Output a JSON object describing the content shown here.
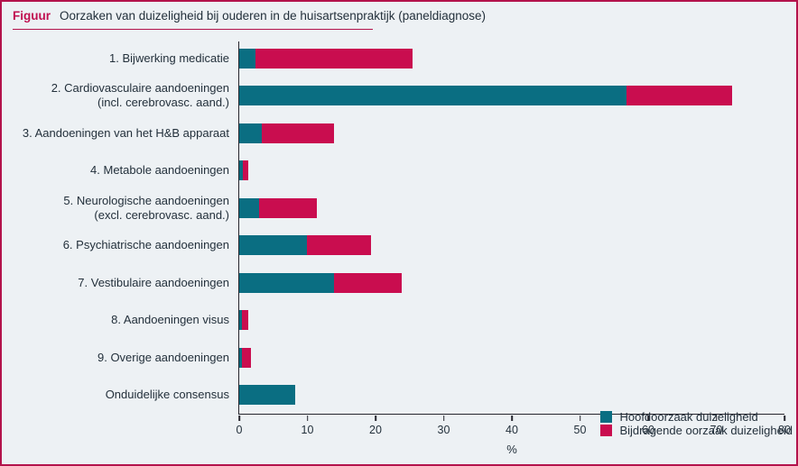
{
  "header": {
    "figure_label": "Figuur",
    "title": "Oorzaken van duizeligheid bij ouderen in de huisartsenpraktijk (paneldiagnose)"
  },
  "colors": {
    "background": "#edf1f4",
    "border_accent": "#b3134b",
    "main_cause_teal": "#0a6e82",
    "contributing_cause_pink": "#c90d4f",
    "axis": "#26262e",
    "text": "#23303b"
  },
  "chart_data": {
    "type": "bar",
    "orientation": "horizontal-stacked",
    "title": "Oorzaken van duizeligheid bij ouderen in de huisartsenpraktijk (paneldiagnose)",
    "categories": [
      "1. Bijwerking medicatie",
      "2. Cardiovasculaire aandoeningen\n(incl. cerebrovasc. aand.)",
      "3. Aandoeningen van het H&B apparaat",
      "4. Metabole aandoeningen",
      "5. Neurologische aandoeningen\n(excl. cerebrovasc. aand.)",
      "6. Psychiatrische aandoeningen",
      "7. Vestibulaire aandoeningen",
      "8. Aandoeningen visus",
      "9. Overige aandoeningen",
      "Onduidelijke consensus"
    ],
    "series": [
      {
        "name": "Hoofdoorzaak duizeligheid",
        "color": "#0a6e82",
        "values": [
          2.5,
          57,
          3.5,
          0.7,
          3,
          10,
          14,
          0.5,
          0.5,
          8.3
        ]
      },
      {
        "name": "Bijdragende oorzaak duizeligheid",
        "color": "#c90d4f",
        "values": [
          23,
          15.5,
          10.5,
          0.7,
          8.5,
          9.5,
          10,
          0.9,
          1.4,
          0
        ]
      }
    ],
    "totals": [
      25.5,
      72.5,
      14,
      1.4,
      11.5,
      19.5,
      24,
      1.4,
      1.9,
      8.3
    ],
    "xlabel": "%",
    "xlim": [
      0,
      80
    ],
    "xticks": [
      0,
      10,
      20,
      30,
      40,
      50,
      60,
      70,
      80
    ],
    "grid": false,
    "legend_position": "inside-bottom-right"
  }
}
